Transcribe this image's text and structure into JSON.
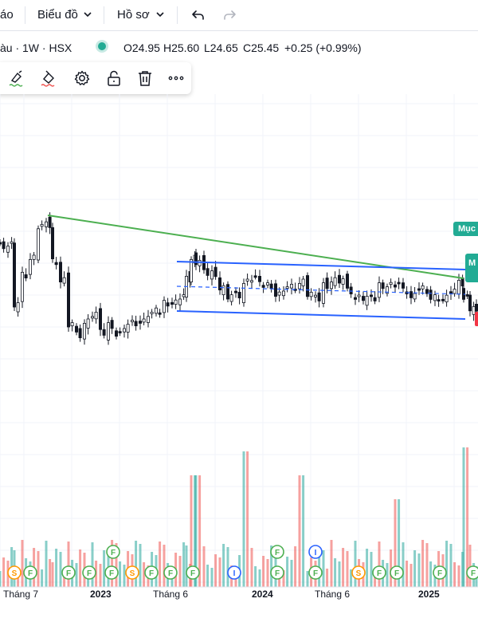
{
  "topbar": {
    "alerts_label": "áo",
    "chart_menu_label": "Biểu đồ",
    "profile_menu_label": "Hồ sơ"
  },
  "legend": {
    "symbol": "àu · 1W · HSX",
    "open": "O24.95",
    "high": "H25.60",
    "low": "L24.65",
    "close": "C25.45",
    "change": "+0.25 (+0.99%)",
    "market_status_color": "#22ab94"
  },
  "drawing_toolbar": {
    "icons": [
      "line-color-icon",
      "fill-color-icon",
      "settings-icon",
      "unlock-icon",
      "trash-icon",
      "more-icon"
    ]
  },
  "price_labels": {
    "upper": "Mục",
    "side": "M"
  },
  "x_axis": {
    "labels": [
      {
        "text": "Tháng 7",
        "bold": false
      },
      {
        "text": "2023",
        "bold": true
      },
      {
        "text": "Tháng 6",
        "bold": false
      },
      {
        "text": "2024",
        "bold": true
      },
      {
        "text": "Tháng 6",
        "bold": false
      },
      {
        "text": "2025",
        "bold": true
      }
    ]
  },
  "colors": {
    "up": "#26a69a",
    "down": "#ef5350",
    "trendline": "#4caf50",
    "channel": "#2962ff",
    "candle": "#131722"
  },
  "event_markers": {
    "row1": [
      "S",
      "F",
      "F",
      "F",
      "F",
      "S",
      "F",
      "F",
      "F",
      "I",
      "F",
      "F",
      "S",
      "F",
      "F",
      "F",
      "F"
    ],
    "row2": [
      "F",
      "F",
      "I"
    ]
  }
}
